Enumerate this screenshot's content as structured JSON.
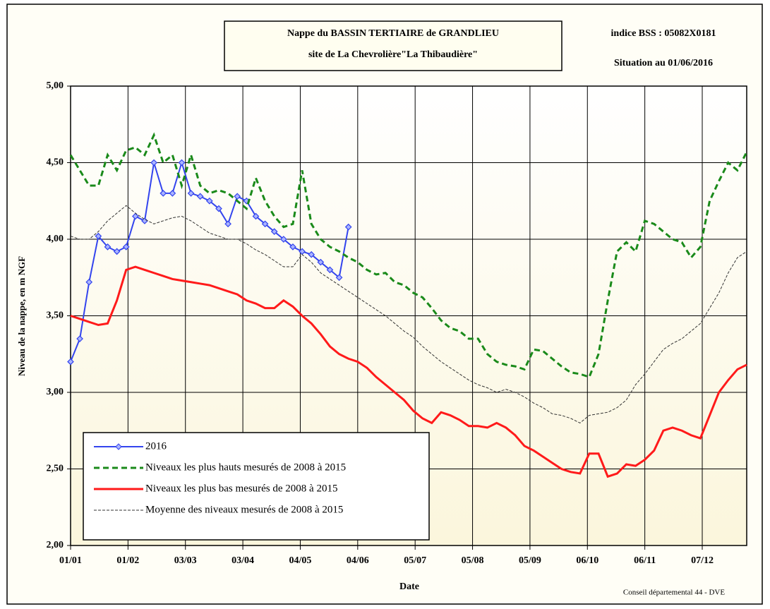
{
  "chart_data": {
    "type": "line",
    "title": "Nappe du BASSIN TERTIAIRE de GRANDLIEU",
    "subtitle": "site de La Chevrolière\"La Thibaudière\"",
    "annotations": [
      "indice BSS : 05082X0181",
      "Situation au 01/06/2016",
      "Conseil départemental 44 - DVE"
    ],
    "x_label": "Date",
    "y_label": "Niveau de la nappe, en m NGF",
    "x": [
      0,
      5,
      10,
      15,
      20,
      25,
      30,
      35,
      40,
      45,
      50,
      55,
      60,
      65,
      70,
      75,
      80,
      85,
      90,
      95,
      100,
      105,
      110,
      115,
      120,
      125,
      130,
      135,
      140,
      145,
      150,
      155,
      160,
      165,
      170,
      175,
      180,
      185,
      190,
      195,
      200,
      205,
      210,
      215,
      220,
      225,
      230,
      235,
      240,
      245,
      250,
      255,
      260,
      265,
      270,
      275,
      280,
      285,
      290,
      295,
      300,
      305,
      310,
      315,
      320,
      325,
      330,
      335,
      340,
      345,
      350,
      355,
      360,
      365
    ],
    "xlim": [
      0,
      365
    ],
    "xticks": [
      {
        "value": 0,
        "label": "01/01"
      },
      {
        "value": 31,
        "label": "01/02"
      },
      {
        "value": 62,
        "label": "03/03"
      },
      {
        "value": 93,
        "label": "03/04"
      },
      {
        "value": 124,
        "label": "04/05"
      },
      {
        "value": 155,
        "label": "04/06"
      },
      {
        "value": 186,
        "label": "05/07"
      },
      {
        "value": 217,
        "label": "05/08"
      },
      {
        "value": 248,
        "label": "05/09"
      },
      {
        "value": 279,
        "label": "06/10"
      },
      {
        "value": 310,
        "label": "06/11"
      },
      {
        "value": 341,
        "label": "07/12"
      }
    ],
    "ylim": [
      2,
      5
    ],
    "yticks": [
      {
        "value": 2,
        "label": "2,00"
      },
      {
        "value": 2.5,
        "label": "2,50"
      },
      {
        "value": 3,
        "label": "3,00"
      },
      {
        "value": 3.5,
        "label": "3,50"
      },
      {
        "value": 4,
        "label": "4,00"
      },
      {
        "value": 4.5,
        "label": "4,50"
      },
      {
        "value": 5,
        "label": "5,00"
      }
    ],
    "grid": true,
    "legend": "lower left",
    "series": [
      {
        "name": "2016",
        "color": "#3344ee",
        "style": "markers",
        "values": [
          3.2,
          3.35,
          3.72,
          4.02,
          3.95,
          3.92,
          3.95,
          4.15,
          4.12,
          4.5,
          4.3,
          4.3,
          4.5,
          4.3,
          4.28,
          4.25,
          4.2,
          4.1,
          4.28,
          4.25,
          4.15,
          4.1,
          4.05,
          4.0,
          3.95,
          3.92,
          3.9,
          3.85,
          3.8,
          3.75,
          4.08,
          null,
          null,
          null,
          null,
          null,
          null,
          null,
          null,
          null,
          null,
          null,
          null,
          null,
          null,
          null,
          null,
          null,
          null,
          null,
          null,
          null,
          null,
          null,
          null,
          null,
          null,
          null,
          null,
          null,
          null,
          null,
          null,
          null,
          null,
          null,
          null,
          null,
          null,
          null,
          null,
          null,
          null,
          null
        ]
      },
      {
        "name": "Niveaux les plus hauts mesurés de 2008 à 2015",
        "color": "#1a8a1a",
        "style": "dashed",
        "values": [
          4.55,
          4.45,
          4.35,
          4.35,
          4.55,
          4.45,
          4.58,
          4.6,
          4.55,
          4.68,
          4.5,
          4.55,
          4.35,
          4.55,
          4.35,
          4.3,
          4.32,
          4.3,
          4.25,
          4.2,
          4.4,
          4.25,
          4.15,
          4.08,
          4.1,
          4.45,
          4.1,
          4.0,
          3.95,
          3.92,
          3.88,
          3.85,
          3.8,
          3.77,
          3.78,
          3.72,
          3.7,
          3.65,
          3.62,
          3.55,
          3.47,
          3.42,
          3.4,
          3.35,
          3.35,
          3.25,
          3.2,
          3.18,
          3.17,
          3.15,
          3.28,
          3.27,
          3.22,
          3.17,
          3.13,
          3.12,
          3.1,
          3.25,
          3.6,
          3.92,
          3.98,
          3.92,
          4.12,
          4.1,
          4.05,
          4.0,
          3.98,
          3.88,
          3.95,
          4.25,
          4.38,
          4.5,
          4.45,
          4.57
        ]
      },
      {
        "name": "Niveaux les plus bas mesurés de 2008 à 2015",
        "color": "#ff1a1a",
        "style": "solid",
        "values": [
          3.5,
          3.48,
          3.46,
          3.44,
          3.45,
          3.6,
          3.8,
          3.82,
          3.8,
          3.78,
          3.76,
          3.74,
          3.73,
          3.72,
          3.71,
          3.7,
          3.68,
          3.66,
          3.64,
          3.6,
          3.58,
          3.55,
          3.55,
          3.6,
          3.56,
          3.5,
          3.45,
          3.38,
          3.3,
          3.25,
          3.22,
          3.2,
          3.16,
          3.1,
          3.05,
          3.0,
          2.95,
          2.88,
          2.83,
          2.8,
          2.87,
          2.85,
          2.82,
          2.78,
          2.78,
          2.77,
          2.8,
          2.77,
          2.72,
          2.65,
          2.62,
          2.58,
          2.54,
          2.5,
          2.48,
          2.47,
          2.6,
          2.6,
          2.45,
          2.47,
          2.53,
          2.52,
          2.56,
          2.62,
          2.75,
          2.77,
          2.75,
          2.72,
          2.7,
          2.85,
          3.0,
          3.08,
          3.15,
          3.18
        ]
      },
      {
        "name": "Moyenne des niveaux mesurés de 2008 à 2015",
        "color": "#333333",
        "style": "thin",
        "values": [
          4.02,
          4.0,
          4.0,
          4.05,
          4.12,
          4.17,
          4.22,
          4.17,
          4.13,
          4.1,
          4.12,
          4.14,
          4.15,
          4.12,
          4.08,
          4.04,
          4.02,
          4.0,
          4.0,
          3.97,
          3.93,
          3.9,
          3.86,
          3.82,
          3.82,
          3.9,
          3.85,
          3.78,
          3.74,
          3.7,
          3.66,
          3.62,
          3.58,
          3.54,
          3.5,
          3.45,
          3.4,
          3.36,
          3.3,
          3.25,
          3.2,
          3.16,
          3.12,
          3.08,
          3.05,
          3.03,
          3.0,
          3.02,
          3.0,
          2.97,
          2.93,
          2.9,
          2.86,
          2.85,
          2.83,
          2.8,
          2.85,
          2.86,
          2.87,
          2.9,
          2.95,
          3.05,
          3.12,
          3.2,
          3.28,
          3.32,
          3.35,
          3.4,
          3.45,
          3.55,
          3.65,
          3.78,
          3.88,
          3.92
        ]
      }
    ]
  }
}
